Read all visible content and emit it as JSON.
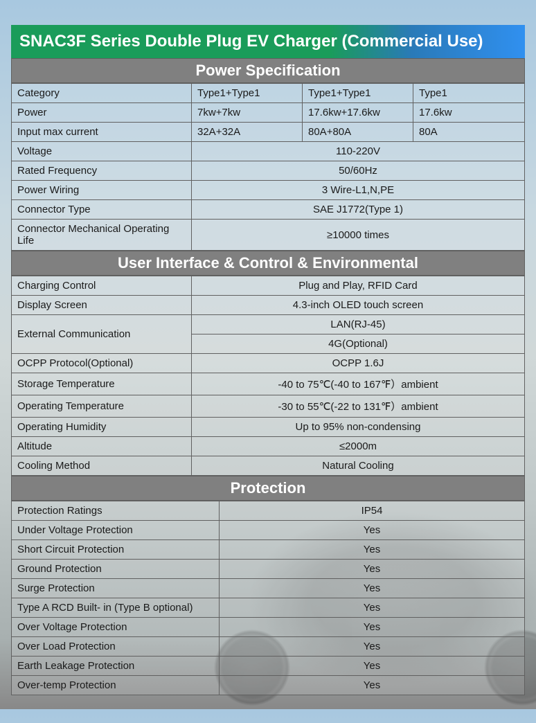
{
  "title": "SNAC3F Series Double Plug EV Charger (Commercial Use)",
  "sections": {
    "power": {
      "header": "Power Specification",
      "cat_row": {
        "label": "Category",
        "c2": "Type1+Type1",
        "c3": "Type1+Type1",
        "c4": "Type1"
      },
      "power_row": {
        "label": "Power",
        "c2": "7kw+7kw",
        "c3": "17.6kw+17.6kw",
        "c4": "17.6kw"
      },
      "current_row": {
        "label": "Input max current",
        "c2": "32A+32A",
        "c3": "80A+80A",
        "c4": "80A"
      },
      "voltage": {
        "label": "Voltage",
        "val": "110-220V"
      },
      "freq": {
        "label": "Rated Frequency",
        "val": "50/60Hz"
      },
      "wiring": {
        "label": "Power Wiring",
        "val": "3 Wire-L1,N,PE"
      },
      "connector": {
        "label": "Connector Type",
        "val": "SAE J1772(Type 1)"
      },
      "life": {
        "label": "Connector Mechanical Operating Life",
        "val": "≥10000 times"
      }
    },
    "ui": {
      "header": "User Interface & Control & Environmental",
      "charging": {
        "label": "Charging Control",
        "val": "Plug and Play, RFID Card"
      },
      "display": {
        "label": "Display Screen",
        "val": "4.3-inch OLED touch screen"
      },
      "ext_label": "External Communication",
      "ext1": "LAN(RJ-45)",
      "ext2": "4G(Optional)",
      "ocpp": {
        "label": "OCPP Protocol(Optional)",
        "val": "OCPP 1.6J"
      },
      "storage": {
        "label": "Storage Temperature",
        "val": "-40 to 75℃(-40 to 167℉）ambient"
      },
      "operating": {
        "label": "Operating Temperature",
        "val": "-30 to 55℃(-22 to 131℉）ambient"
      },
      "humidity": {
        "label": "Operating Humidity",
        "val": "Up to 95% non-condensing"
      },
      "altitude": {
        "label": "Altitude",
        "val": "≤2000m"
      },
      "cooling": {
        "label": "Cooling Method",
        "val": "Natural Cooling"
      }
    },
    "protection": {
      "header": "Protection",
      "rows": [
        {
          "label": "Protection Ratings",
          "val": "IP54"
        },
        {
          "label": "Under Voltage Protection",
          "val": "Yes"
        },
        {
          "label": "Short Circuit Protection",
          "val": "Yes"
        },
        {
          "label": "Ground Protection",
          "val": "Yes"
        },
        {
          "label": "Surge Protection",
          "val": "Yes"
        },
        {
          "label": "Type A RCD Built- in (Type B optional)",
          "val": "Yes"
        },
        {
          "label": "Over Voltage Protection",
          "val": "Yes"
        },
        {
          "label": "Over Load Protection",
          "val": "Yes"
        },
        {
          "label": "Earth Leakage Protection",
          "val": "Yes"
        },
        {
          "label": "Over-temp Protection",
          "val": "Yes"
        }
      ]
    }
  },
  "styling": {
    "title_gradient": [
      "#1a9c5a",
      "#2a7ab8",
      "#3090f0"
    ],
    "section_bg": "#808080",
    "border_color": "#606060",
    "text_color": "#1a1a1a",
    "title_fontsize": 24,
    "header_fontsize": 22,
    "cell_fontsize": 15
  }
}
